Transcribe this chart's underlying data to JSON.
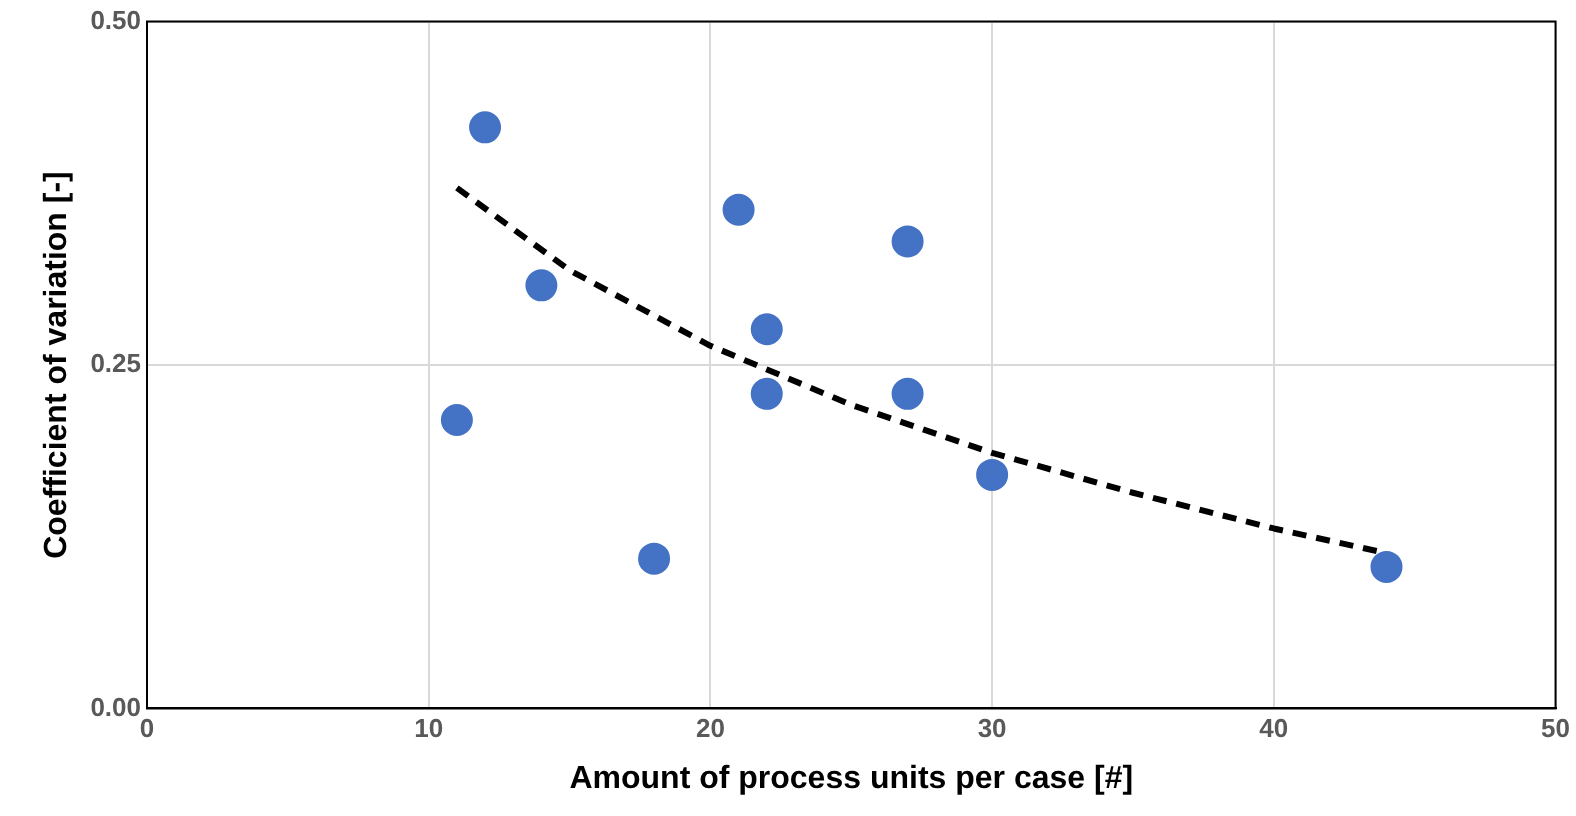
{
  "chart_data": {
    "type": "scatter",
    "xlabel": "Amount of process units per case [#]",
    "ylabel": "Coefficient of variation [-]",
    "xlim": [
      0,
      50
    ],
    "xticks": [
      0,
      10,
      20,
      30,
      40,
      50
    ],
    "ylim": [
      0,
      0.5
    ],
    "yticks": [
      {
        "value": 0,
        "label": "0.00"
      },
      {
        "value": 0.25,
        "label": "0.25"
      },
      {
        "value": 0.5,
        "label": "0.50"
      }
    ],
    "grid": true,
    "legend": false,
    "marker": "circle",
    "series": [
      {
        "type": "scatter",
        "color": "#4472c4",
        "x": [
          11,
          12,
          14,
          18,
          21,
          22,
          22,
          27,
          27,
          30,
          44
        ],
        "values": [
          0.21,
          0.423,
          0.308,
          0.109,
          0.363,
          0.276,
          0.229,
          0.34,
          0.229,
          0.17,
          0.103
        ]
      },
      {
        "type": "line",
        "color": "#000000",
        "line_style": "dashed",
        "marker": "none",
        "x": [
          11,
          15,
          20,
          25,
          30,
          35,
          40,
          44
        ],
        "values": [
          0.379,
          0.319,
          0.264,
          0.221,
          0.186,
          0.157,
          0.131,
          0.113
        ]
      }
    ]
  }
}
